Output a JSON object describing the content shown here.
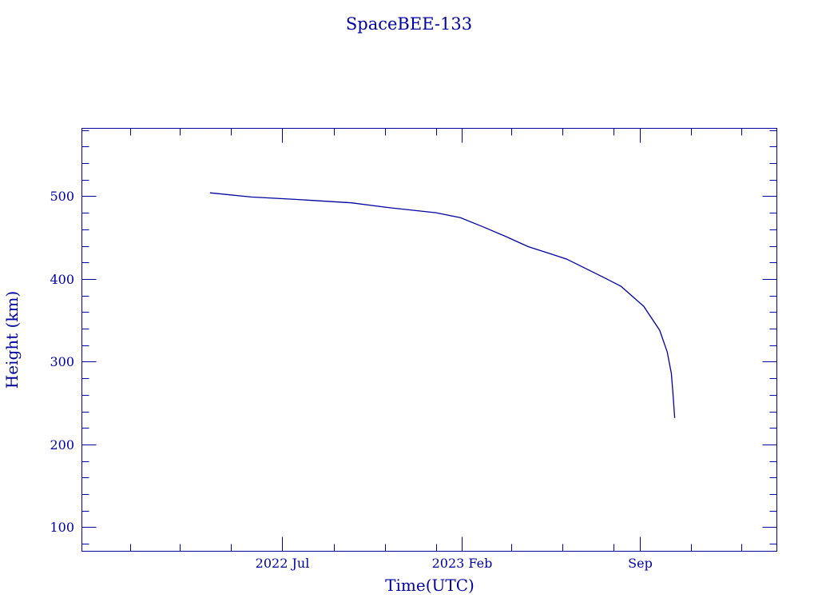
{
  "chart_data": {
    "type": "line",
    "title": "SpaceBEE-133",
    "xlabel": "Time(UTC)",
    "ylabel": "Height (km)",
    "x_type": "date",
    "xlim": [
      "2021-11-04",
      "2024-02-12"
    ],
    "ylim": [
      71,
      582
    ],
    "x_major_ticks": [
      {
        "date": "2022-07-01",
        "label": "2022 Jul"
      },
      {
        "date": "2023-02-01",
        "label": "2023 Feb"
      },
      {
        "date": "2023-09-01",
        "label": "Sep"
      }
    ],
    "x_minor_ticks": [
      "2022-01-01",
      "2022-03-01",
      "2022-05-01",
      "2022-09-01",
      "2022-11-01",
      "2023-01-01",
      "2023-04-01",
      "2023-06-01",
      "2023-08-01",
      "2023-11-01",
      "2024-01-01"
    ],
    "y_major_ticks": [
      100,
      200,
      300,
      400,
      500
    ],
    "y_minor_step": 20,
    "grid": false,
    "color": "#0000a0",
    "series": [
      {
        "x": [
          "2022-04-06",
          "2022-05-25",
          "2022-07-19",
          "2022-09-22",
          "2022-11-07",
          "2023-01-01",
          "2023-01-30",
          "2023-02-26",
          "2023-03-26",
          "2023-04-21",
          "2023-05-19",
          "2023-06-06",
          "2023-07-22",
          "2023-08-10",
          "2023-09-06",
          "2023-09-25",
          "2023-10-04",
          "2023-10-09",
          "2023-10-11",
          "2023-10-13"
        ],
        "y": [
          504,
          499,
          496,
          492,
          486,
          480,
          474,
          463,
          451,
          439,
          430,
          424,
          401,
          391,
          367,
          338,
          312,
          286,
          261,
          232
        ]
      }
    ]
  }
}
